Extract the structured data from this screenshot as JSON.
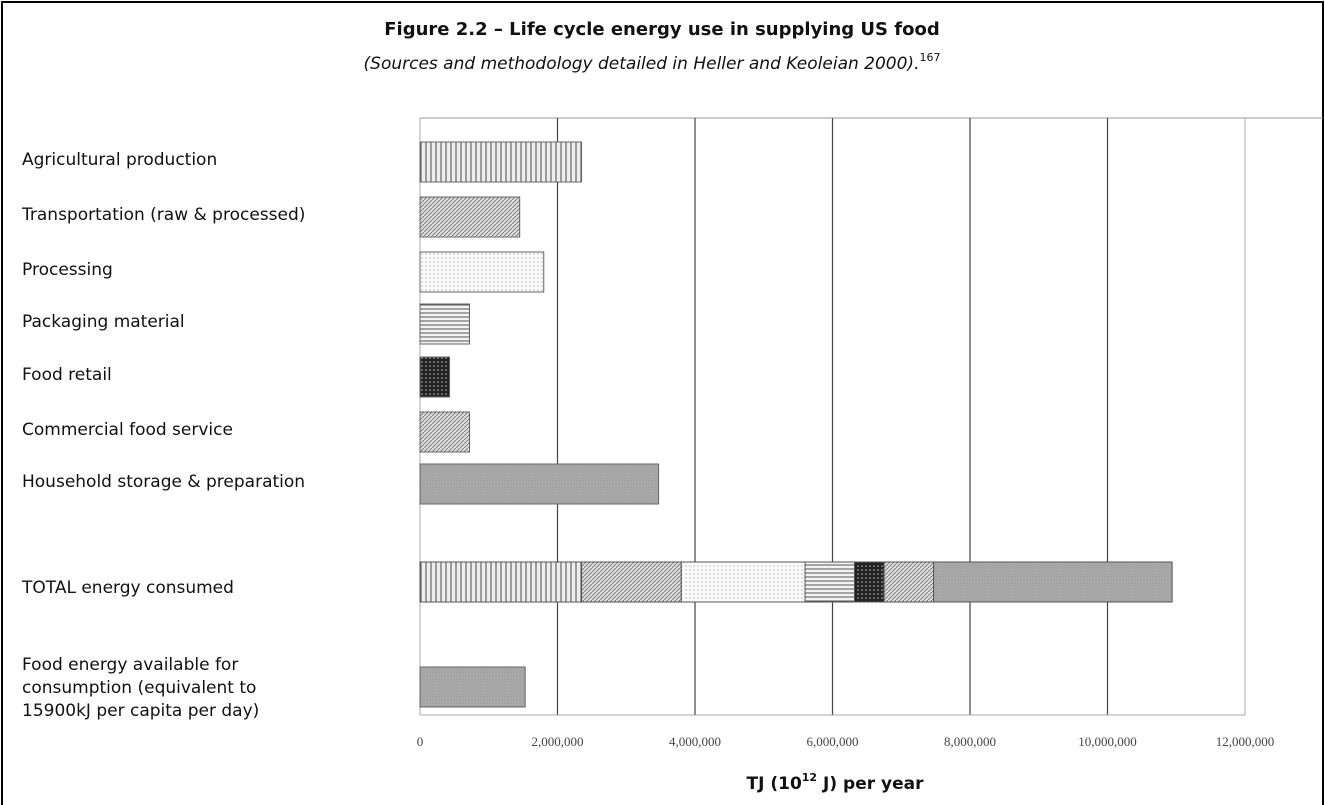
{
  "chart_data": {
    "type": "bar",
    "title": "Figure 2.2 – Life cycle energy use in supplying US food",
    "subtitle": "(Sources and methodology detailed in Heller and Keoleian 2000).",
    "subtitle_ref": "167",
    "xlabel": [
      "TJ (10",
      "12",
      " J) per year"
    ],
    "categories": [
      "Agricultural production",
      "Transportation (raw & processed)",
      "Processing",
      "Packaging material",
      "Food retail",
      "Commercial food service",
      "Household storage & preparation"
    ],
    "values": [
      2350000,
      1450000,
      1800000,
      720000,
      430000,
      720000,
      3470000
    ],
    "patterns": [
      "vertical",
      "diagonal",
      "dots",
      "horizontal",
      "dark-dots",
      "diagonal",
      "solid"
    ],
    "total_label": "TOTAL energy consumed",
    "food_energy": {
      "label": [
        "Food energy available for",
        "consumption (equivalent to",
        "15900kJ per capita per day)"
      ],
      "value": 1530000,
      "pattern": "solid"
    },
    "xlim": [
      0,
      12000000
    ],
    "xticks": [
      0,
      {
        "value": 2000000,
        "label": "2,000,000"
      },
      {
        "value": 4000000,
        "label": "4,000,000"
      },
      {
        "value": 6000000,
        "label": "6,000,000"
      },
      {
        "value": 8000000,
        "label": "8,000,000"
      },
      {
        "value": 10000000,
        "label": "10,000,000"
      },
      {
        "value": 12000000,
        "label": "12,000,000"
      }
    ],
    "grid": true
  }
}
